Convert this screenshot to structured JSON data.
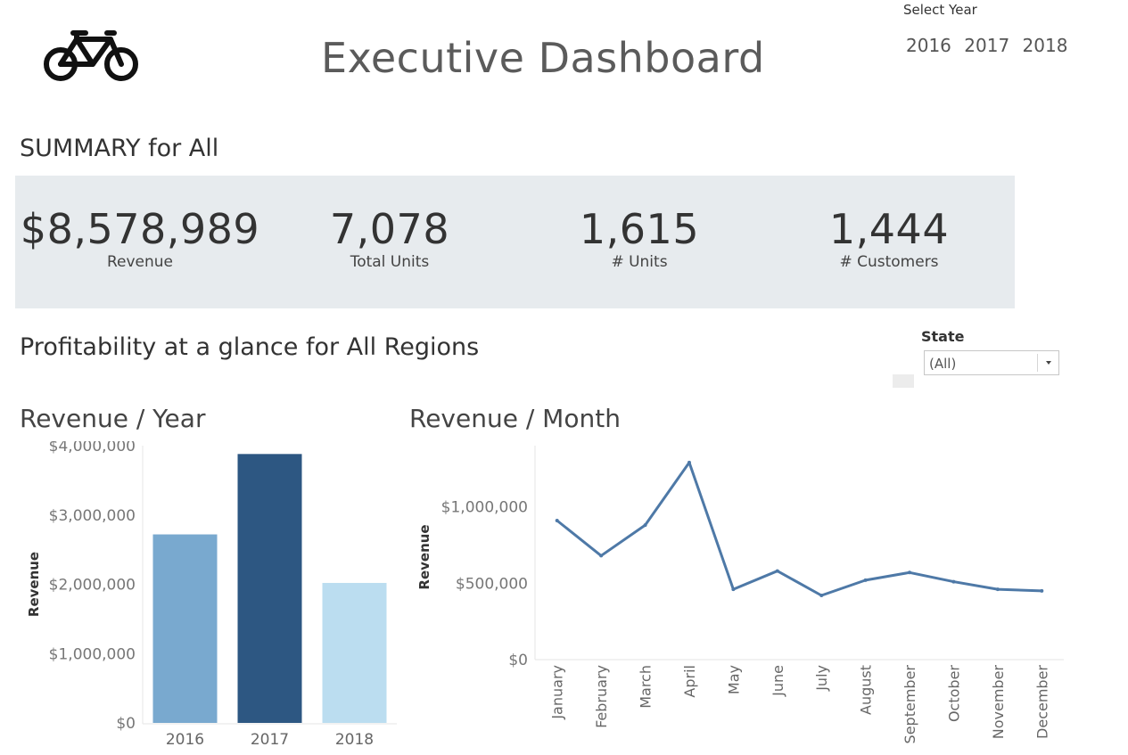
{
  "header": {
    "logo_icon": "bicycle-icon",
    "title": "Executive Dashboard",
    "year_filter": {
      "label": "Select Year",
      "options": [
        "2016",
        "2017",
        "2018"
      ]
    }
  },
  "summary": {
    "heading": "SUMMARY for All",
    "kpis": [
      {
        "value": "$8,578,989",
        "label": "Revenue"
      },
      {
        "value": "7,078",
        "label": "Total Units"
      },
      {
        "value": "1,615",
        "label": "# Units"
      },
      {
        "value": "1,444",
        "label": "# Customers"
      }
    ]
  },
  "profitability": {
    "heading": "Profitability at a glance for All Regions",
    "state_filter": {
      "label": "State",
      "value": "(All)"
    }
  },
  "charts": {
    "revenue_year_title": "Revenue / Year",
    "revenue_month_title": "Revenue / Month"
  },
  "colors": {
    "bar_2016": "#79a9cf",
    "bar_2017": "#2d5782",
    "bar_2018": "#bbddf0",
    "line": "#4e79a7",
    "summary_panel": "#e7ebee"
  },
  "chart_data": [
    {
      "type": "bar",
      "title": "Revenue / Year",
      "ylabel": "Revenue",
      "categories": [
        "2016",
        "2017",
        "2018"
      ],
      "values": [
        2720000,
        3880000,
        2020000
      ],
      "ylim": [
        0,
        4000000
      ],
      "yticks": [
        0,
        1000000,
        2000000,
        3000000,
        4000000
      ],
      "ytick_labels": [
        "$0",
        "$1,000,000",
        "$2,000,000",
        "$3,000,000",
        "$4,000,000"
      ],
      "grid": false
    },
    {
      "type": "line",
      "title": "Revenue / Month",
      "ylabel": "Revenue",
      "categories": [
        "January",
        "February",
        "March",
        "April",
        "May",
        "June",
        "July",
        "August",
        "September",
        "October",
        "November",
        "December"
      ],
      "values": [
        910000,
        680000,
        880000,
        1290000,
        460000,
        580000,
        420000,
        520000,
        570000,
        510000,
        460000,
        450000
      ],
      "ylim": [
        0,
        1400000
      ],
      "yticks": [
        0,
        500000,
        1000000
      ],
      "ytick_labels": [
        "$0",
        "$500,000",
        "$1,000,000"
      ],
      "grid": false
    }
  ]
}
